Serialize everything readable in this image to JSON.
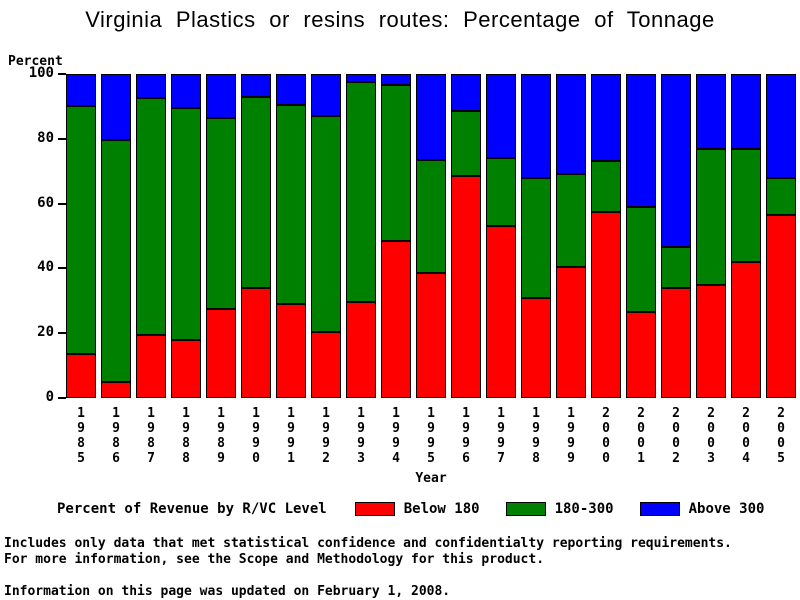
{
  "title": "Virginia Plastics or resins routes: Percentage of Tonnage",
  "y_axis": {
    "label": "Percent",
    "ticks": [
      0,
      20,
      40,
      60,
      80,
      100
    ]
  },
  "x_axis": {
    "label": "Year"
  },
  "legend": {
    "title": "Percent of Revenue by R/VC Level",
    "items": [
      {
        "label": "Below 180",
        "color": "#ff0000"
      },
      {
        "label": "180-300",
        "color": "#008000"
      },
      {
        "label": "Above 300",
        "color": "#0000ff"
      }
    ]
  },
  "footnotes": [
    "Includes only data that met statistical confidence and confidentialty reporting requirements.",
    "For more information, see the Scope and Methodology for this product."
  ],
  "updated_note": "Information on this page was updated on February 1, 2008.",
  "chart_data": {
    "type": "bar",
    "stacked": true,
    "title": "Virginia Plastics or resins routes: Percentage of Tonnage",
    "xlabel": "Year",
    "ylabel": "Percent",
    "ylim": [
      0,
      100
    ],
    "grid": false,
    "legend_position": "bottom",
    "categories": [
      "1985",
      "1986",
      "1987",
      "1988",
      "1989",
      "1990",
      "1991",
      "1992",
      "1993",
      "1994",
      "1995",
      "1996",
      "1997",
      "1998",
      "1999",
      "2000",
      "2001",
      "2002",
      "2003",
      "2004",
      "2005"
    ],
    "series": [
      {
        "name": "Below 180",
        "color": "#ff0000",
        "values": [
          13.5,
          5.0,
          19.5,
          18.0,
          27.5,
          34.0,
          29.0,
          20.5,
          29.5,
          48.5,
          38.5,
          68.5,
          53.0,
          31.0,
          40.5,
          57.5,
          26.5,
          34.0,
          35.0,
          42.0,
          56.5
        ]
      },
      {
        "name": "180-300",
        "color": "#008000",
        "values": [
          76.5,
          74.5,
          73.0,
          71.5,
          59.0,
          59.0,
          61.5,
          66.5,
          68.0,
          48.0,
          35.0,
          20.0,
          21.0,
          37.0,
          28.5,
          15.5,
          32.5,
          12.5,
          42.0,
          35.0,
          11.5
        ]
      },
      {
        "name": "Above 300",
        "color": "#0000ff",
        "values": [
          10.0,
          20.5,
          7.5,
          10.5,
          13.5,
          7.0,
          9.5,
          13.0,
          2.5,
          3.5,
          26.5,
          11.5,
          26.0,
          32.0,
          31.0,
          27.0,
          41.0,
          53.5,
          23.0,
          23.0,
          32.0
        ]
      }
    ]
  }
}
